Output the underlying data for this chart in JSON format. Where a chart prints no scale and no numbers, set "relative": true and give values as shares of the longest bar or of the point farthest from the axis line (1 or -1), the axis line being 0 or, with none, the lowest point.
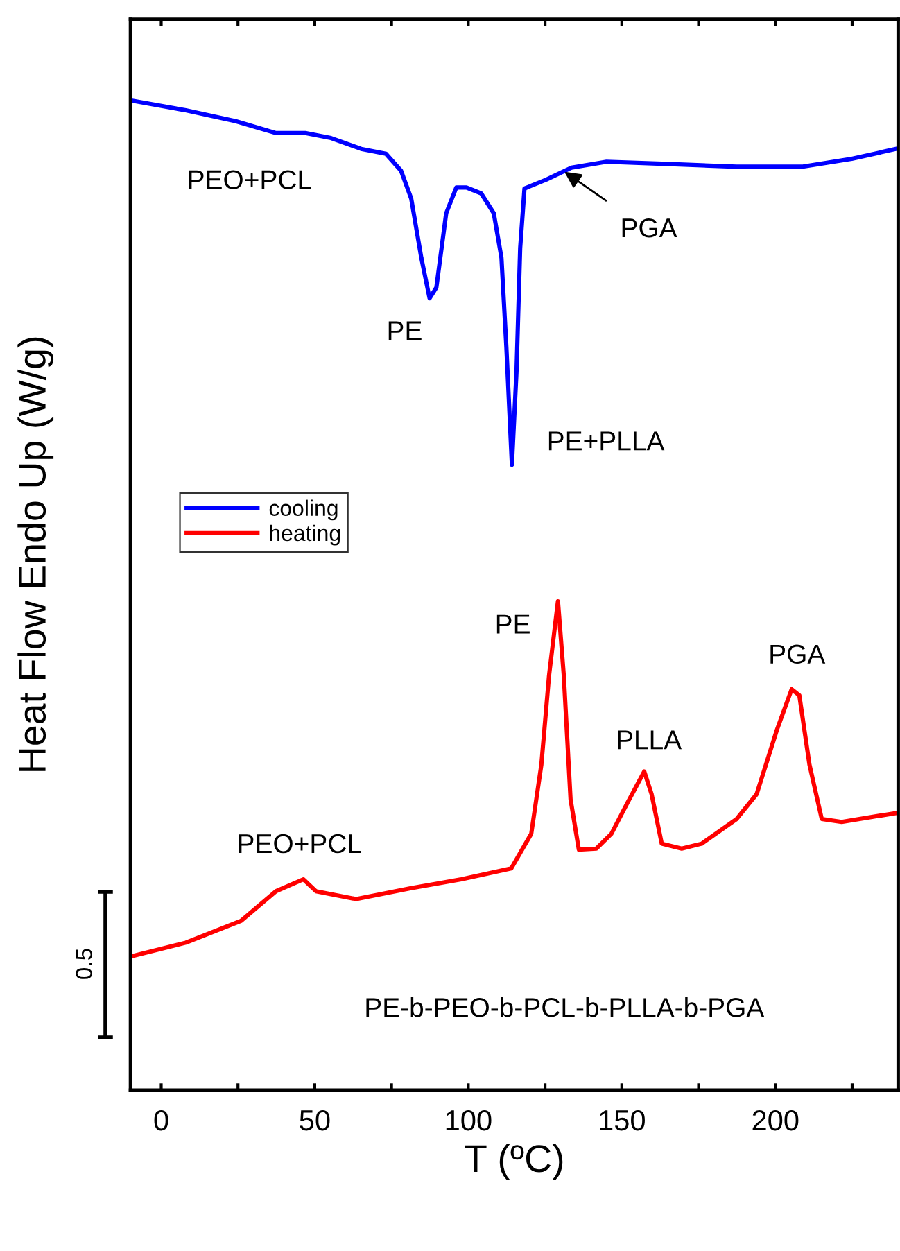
{
  "chart_data": {
    "type": "line",
    "relative": true,
    "xlabel": "T (ºC)",
    "ylabel": "Heat Flow Endo Up (W/g)",
    "xlim": [
      -10,
      240
    ],
    "xticks": [
      0,
      {
        "value": 25,
        "label": null
      },
      50,
      {
        "value": 75,
        "label": null
      },
      100,
      {
        "value": 125,
        "label": null
      },
      150,
      {
        "value": 175,
        "label": null
      },
      200,
      {
        "value": 225,
        "label": null
      }
    ],
    "legend": "left",
    "grid": false,
    "marker": "none",
    "line_style": "solid",
    "series": [
      {
        "name": "cooling",
        "color": "#0000ff",
        "x": [
          -10,
          8.0,
          24.3,
          37.4,
          47.2,
          55.3,
          65.1,
          73.2,
          78.1,
          81.4,
          84.7,
          87.4,
          89.6,
          92.8,
          96.1,
          99.4,
          104.2,
          108.3,
          110.8,
          112.4,
          114.2,
          115.7,
          116.9,
          118.3,
          125.4,
          133.6,
          145.0,
          163.0,
          187.4,
          208.6,
          224.9,
          239.3
        ],
        "values": [
          1.0,
          0.99,
          0.979,
          0.967,
          0.967,
          0.962,
          0.951,
          0.946,
          0.929,
          0.901,
          0.841,
          0.8,
          0.811,
          0.886,
          0.912,
          0.912,
          0.906,
          0.886,
          0.841,
          0.751,
          0.632,
          0.726,
          0.851,
          0.911,
          0.92,
          0.932,
          0.938,
          0.936,
          0.933,
          0.933,
          0.941,
          0.951
        ]
      },
      {
        "name": "heating",
        "color": "#ff0000",
        "x": [
          -10,
          8.0,
          26.0,
          37.4,
          46.3,
          50.4,
          63.5,
          81.4,
          97.7,
          114.0,
          120.5,
          123.8,
          126.3,
          129.2,
          131.1,
          133.3,
          136.0,
          141.7,
          146.6,
          151.6,
          157.3,
          159.7,
          163.0,
          169.5,
          176.0,
          187.4,
          193.9,
          200.5,
          205.3,
          207.8,
          211.1,
          215.1,
          221.6,
          239.3
        ],
        "values": [
          0.135,
          0.149,
          0.171,
          0.201,
          0.213,
          0.201,
          0.193,
          0.204,
          0.213,
          0.224,
          0.259,
          0.329,
          0.419,
          0.494,
          0.419,
          0.294,
          0.243,
          0.244,
          0.259,
          0.289,
          0.322,
          0.299,
          0.249,
          0.244,
          0.249,
          0.274,
          0.299,
          0.364,
          0.405,
          0.399,
          0.329,
          0.274,
          0.271,
          0.28
        ]
      }
    ],
    "annotations": [
      "PEO+PCL",
      "PE",
      "PE+PLLA",
      {
        "text": "PGA",
        "x": 131.3,
        "y": 0.928
      },
      "PEO+PCL",
      "PE",
      "PLLA",
      "PGA",
      "PE-b-PEO-b-PCL-b-PLLA-b-PGA",
      "0.5"
    ]
  }
}
